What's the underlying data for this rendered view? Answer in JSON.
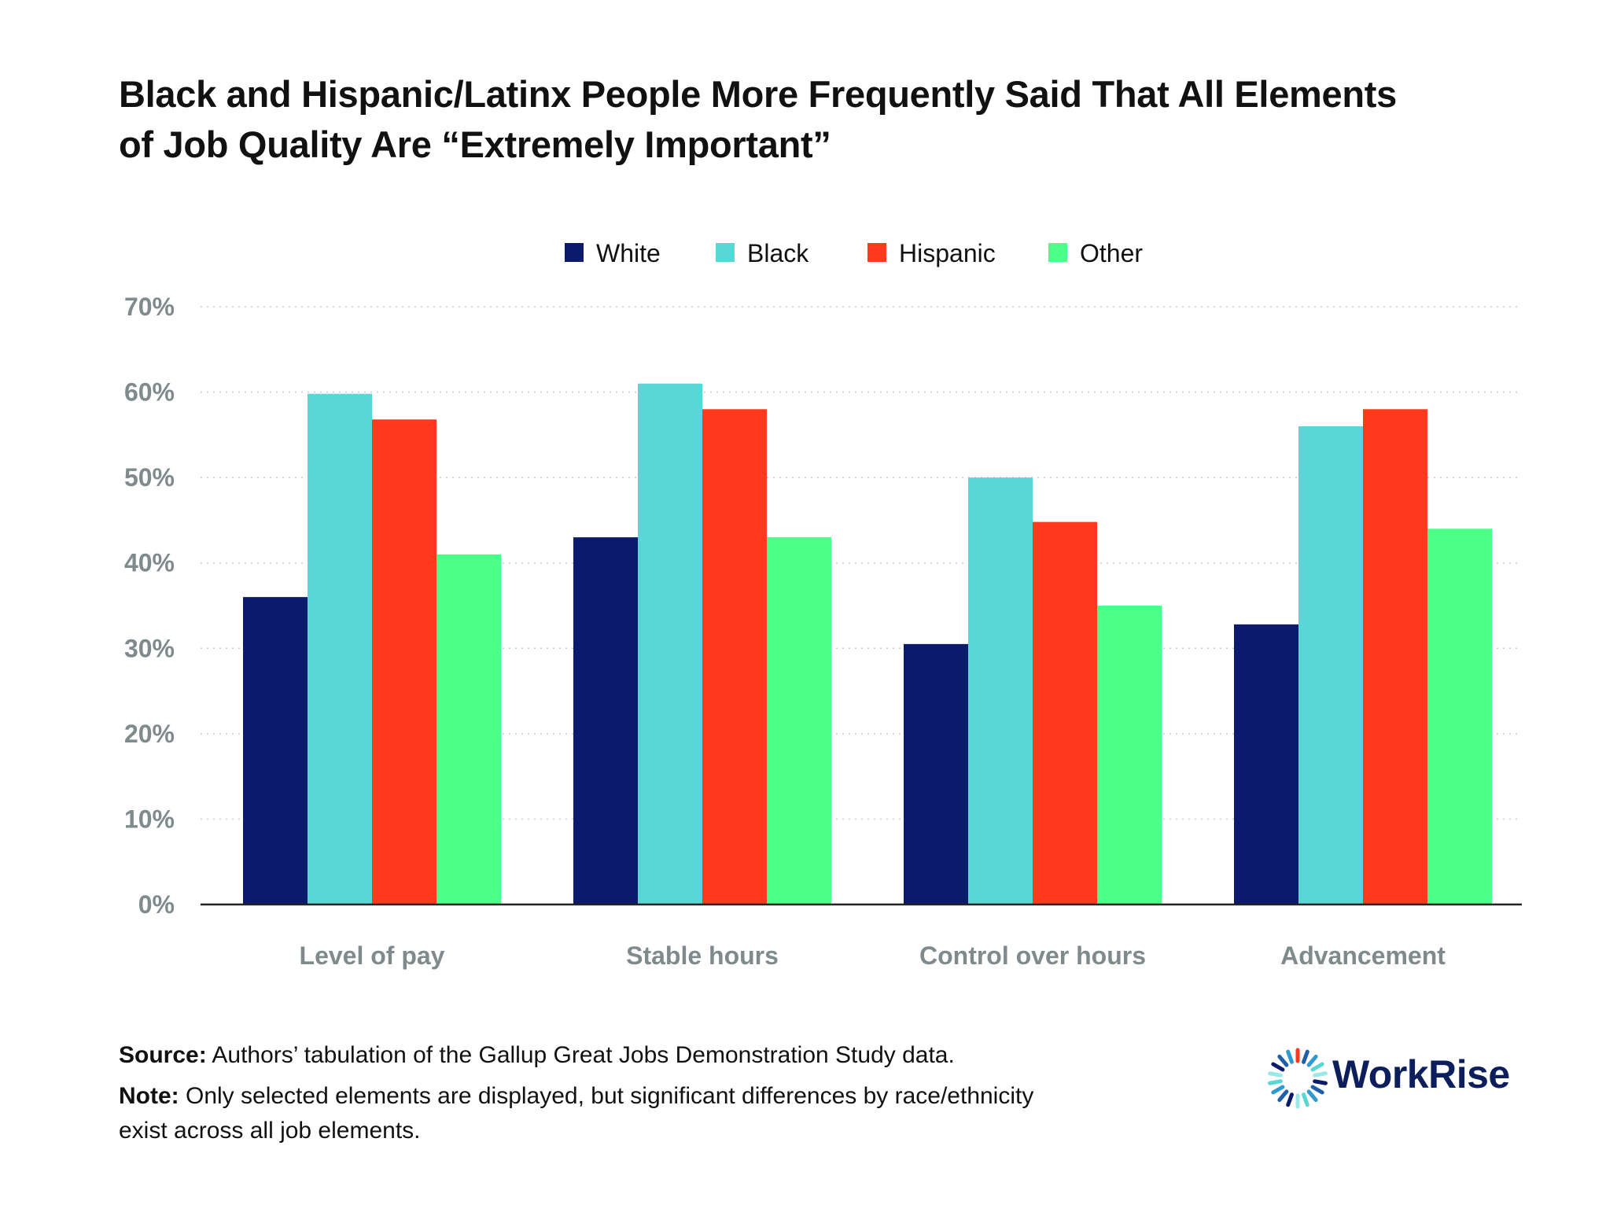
{
  "title_lines": [
    "Black and Hispanic/Latinx People More Frequently Said That All Elements",
    "of Job Quality Are “Extremely Important”"
  ],
  "chart_data": {
    "type": "bar",
    "categories": [
      "Level of pay",
      "Stable hours",
      "Control over hours",
      "Advancement"
    ],
    "series": [
      {
        "name": "White",
        "color": "#0b1a6b",
        "values": [
          36,
          43,
          30.5,
          32.8
        ]
      },
      {
        "name": "Black",
        "color": "#59d6d6",
        "values": [
          59.8,
          61,
          50,
          56
        ]
      },
      {
        "name": "Hispanic",
        "color": "#ff3a1c",
        "values": [
          56.8,
          58,
          44.8,
          58
        ]
      },
      {
        "name": "Other",
        "color": "#4cff88",
        "values": [
          41,
          43,
          35,
          44
        ]
      }
    ],
    "yticks": [
      "0%",
      "10%",
      "20%",
      "30%",
      "40%",
      "50%",
      "60%",
      "70%"
    ],
    "ylim": [
      0,
      70
    ],
    "legend_position": "top-center",
    "grid": true
  },
  "footer": {
    "source_label": "Source:",
    "source_text": " Authors’ tabulation of the Gallup Great Jobs Demonstration Study data.",
    "note_label": "Note:",
    "note_text_1": " Only selected elements are displayed, but significant differences by race/ethnicity",
    "note_text_2": "exist across all job elements."
  },
  "logo": {
    "text": "WorkRise",
    "color": "#0c1e5b",
    "accent": "#ff3a1c",
    "ring_colors": [
      "#0b1a6b",
      "#1f5fa8",
      "#2f9ad0",
      "#59d6d6",
      "#9be8e8"
    ]
  }
}
